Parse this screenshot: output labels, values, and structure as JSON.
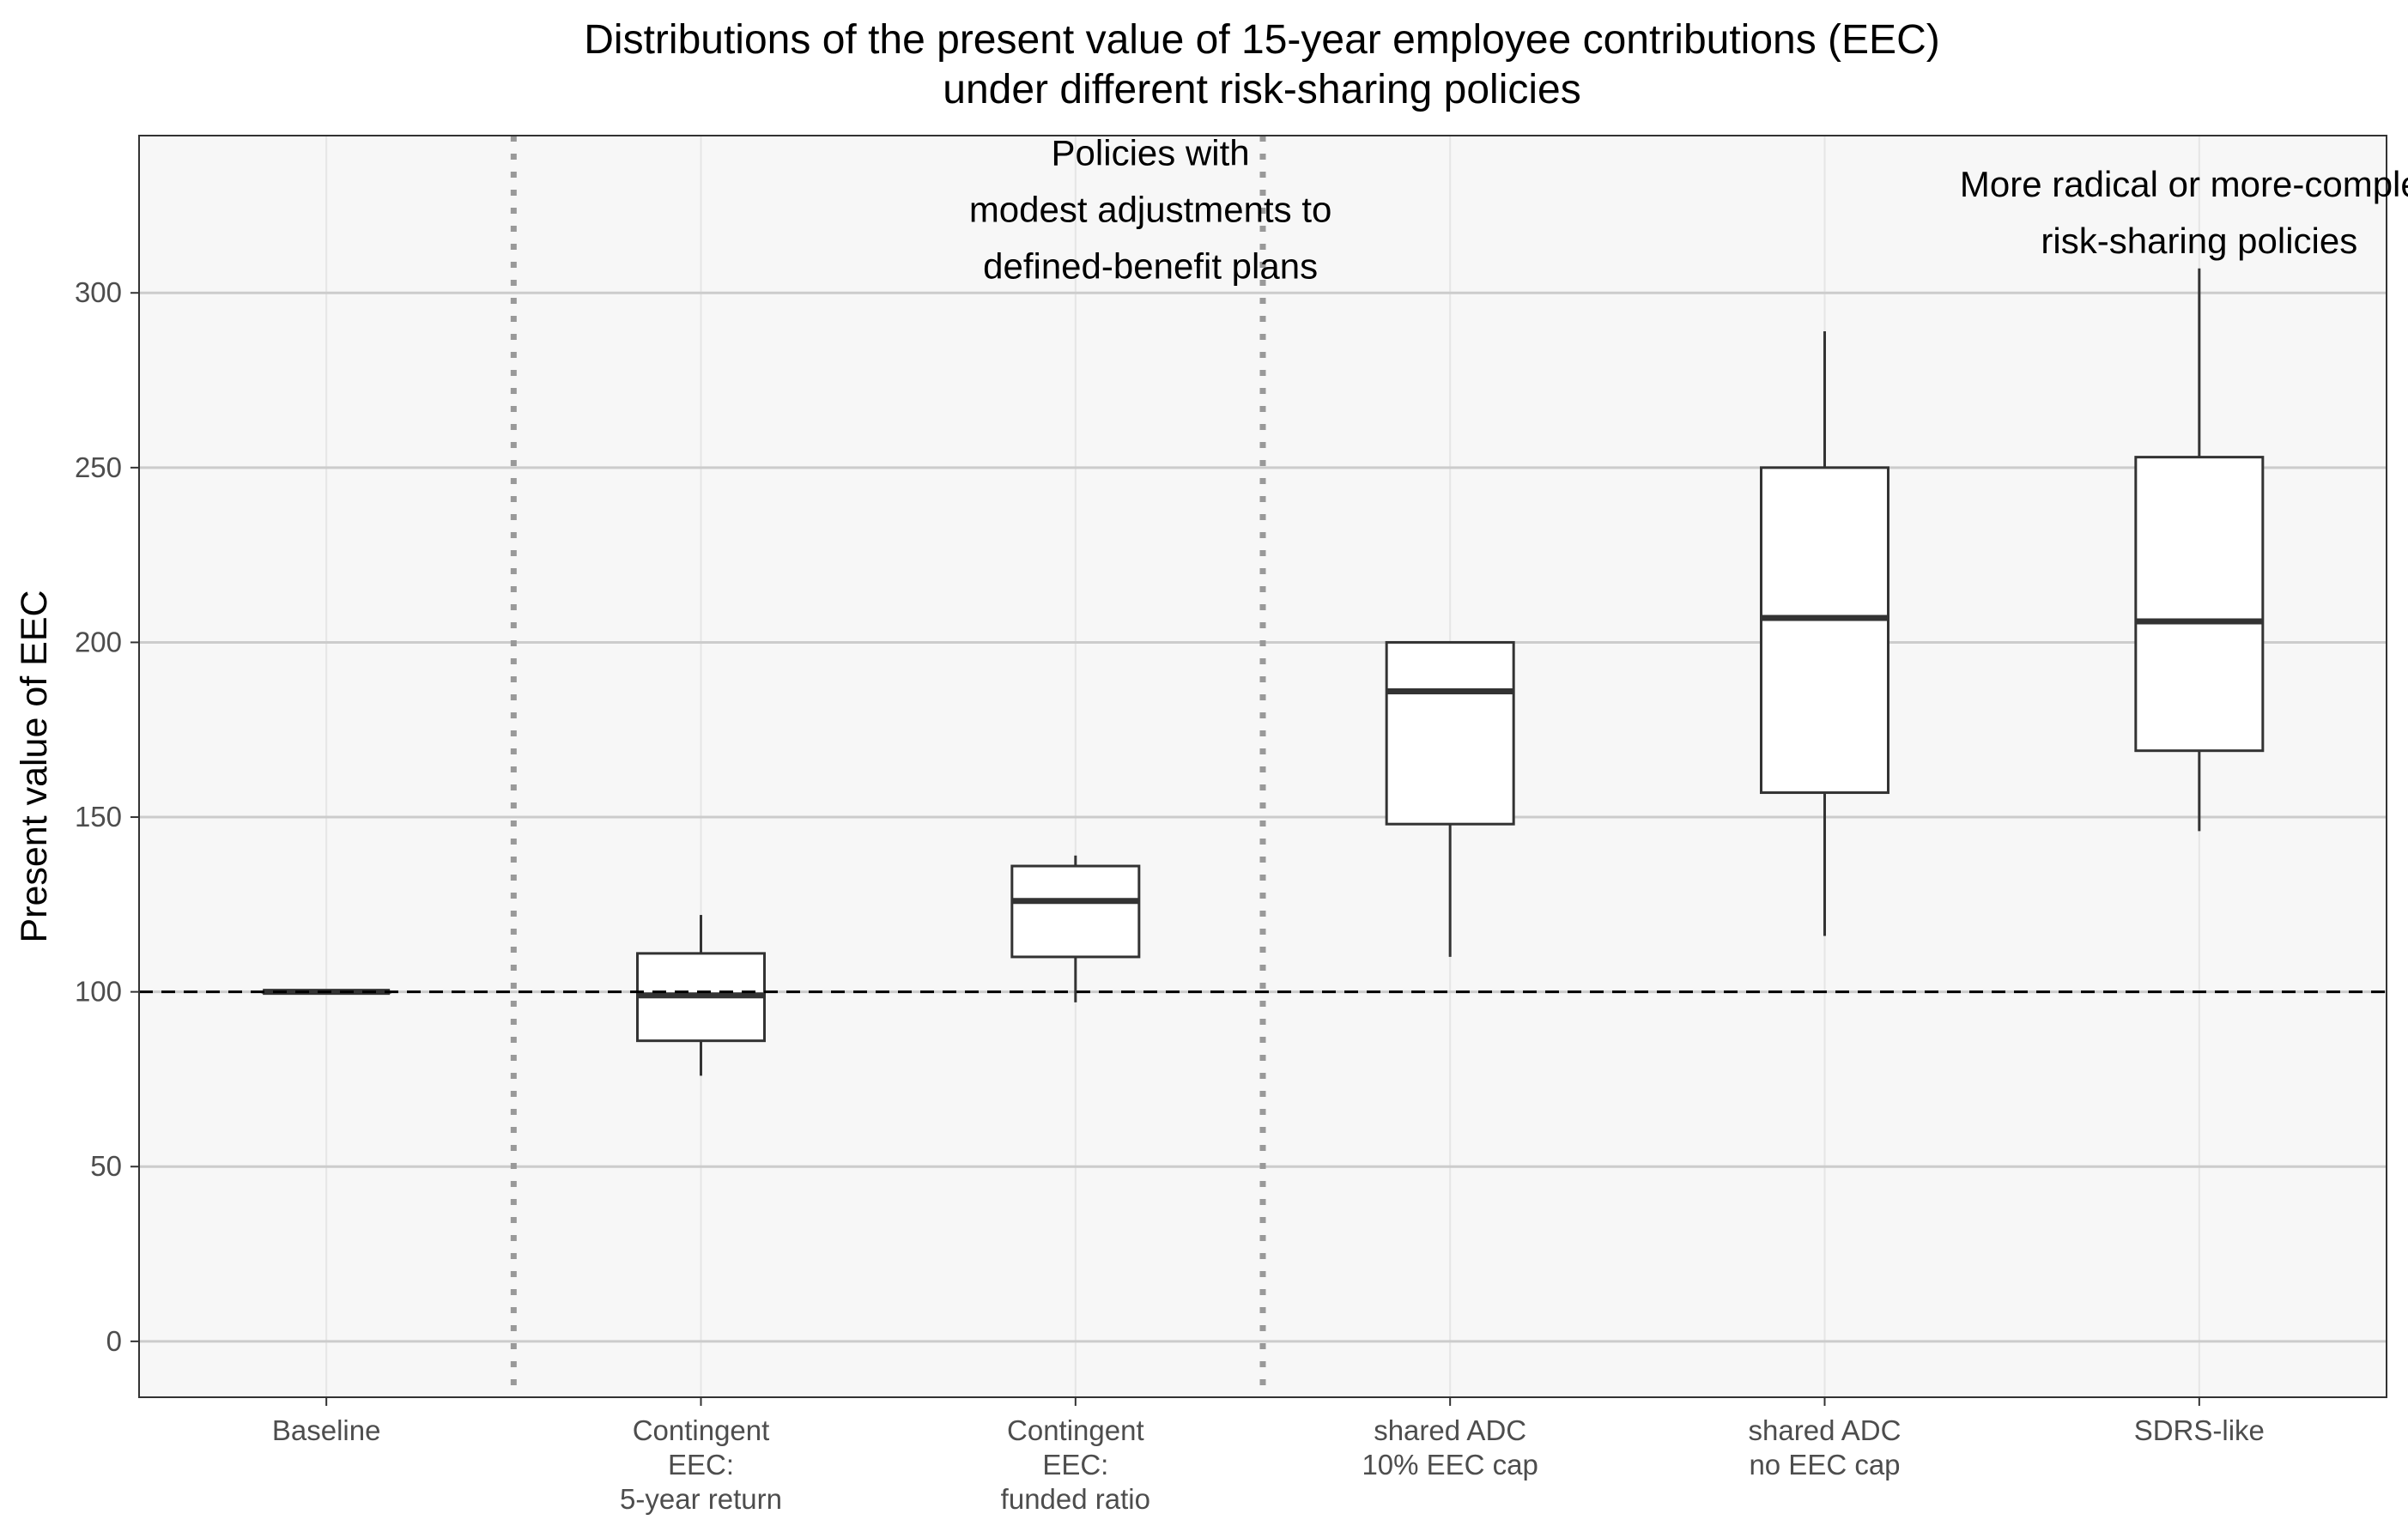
{
  "chart_data": {
    "type": "boxplot",
    "title": [
      "Distributions of the present value of 15-year employee contributions (EEC)",
      "under different risk-sharing policies"
    ],
    "xlabel": "",
    "ylabel": "Present value of EEC",
    "ylim": [
      -16,
      345
    ],
    "yticks": [
      0,
      50,
      100,
      150,
      200,
      250,
      300
    ],
    "grid": true,
    "reference_line": {
      "y": 100,
      "style": "dashed"
    },
    "group_separators_after_category_index": [
      0,
      2
    ],
    "categories": [
      [
        "Baseline"
      ],
      [
        "Contingent",
        "EEC:",
        "5-year return"
      ],
      [
        "Contingent",
        "EEC:",
        "funded ratio"
      ],
      [
        "shared ADC",
        "10% EEC cap"
      ],
      [
        "shared ADC",
        "no EEC cap"
      ],
      [
        "SDRS-like"
      ]
    ],
    "boxes": [
      {
        "whisker_low": 100,
        "q1": 100,
        "median": 100,
        "q3": 100,
        "whisker_high": 100
      },
      {
        "whisker_low": 76,
        "q1": 86,
        "median": 99,
        "q3": 111,
        "whisker_high": 122
      },
      {
        "whisker_low": 97,
        "q1": 110,
        "median": 126,
        "q3": 136,
        "whisker_high": 139
      },
      {
        "whisker_low": 110,
        "q1": 148,
        "median": 186,
        "q3": 200,
        "whisker_high": 200
      },
      {
        "whisker_low": 116,
        "q1": 157,
        "median": 207,
        "q3": 250,
        "whisker_high": 289
      },
      {
        "whisker_low": 146,
        "q1": 169,
        "median": 206,
        "q3": 253,
        "whisker_high": 307
      }
    ],
    "annotations": [
      {
        "lines": [
          "Policies with",
          "modest adjustments to",
          "defined-benefit plans"
        ],
        "x_center": 2.2,
        "y_top": 340
      },
      {
        "lines": [
          "More radical or more-complex",
          "risk-sharing policies"
        ],
        "x_center": 5.0,
        "y_top": 331
      }
    ]
  }
}
